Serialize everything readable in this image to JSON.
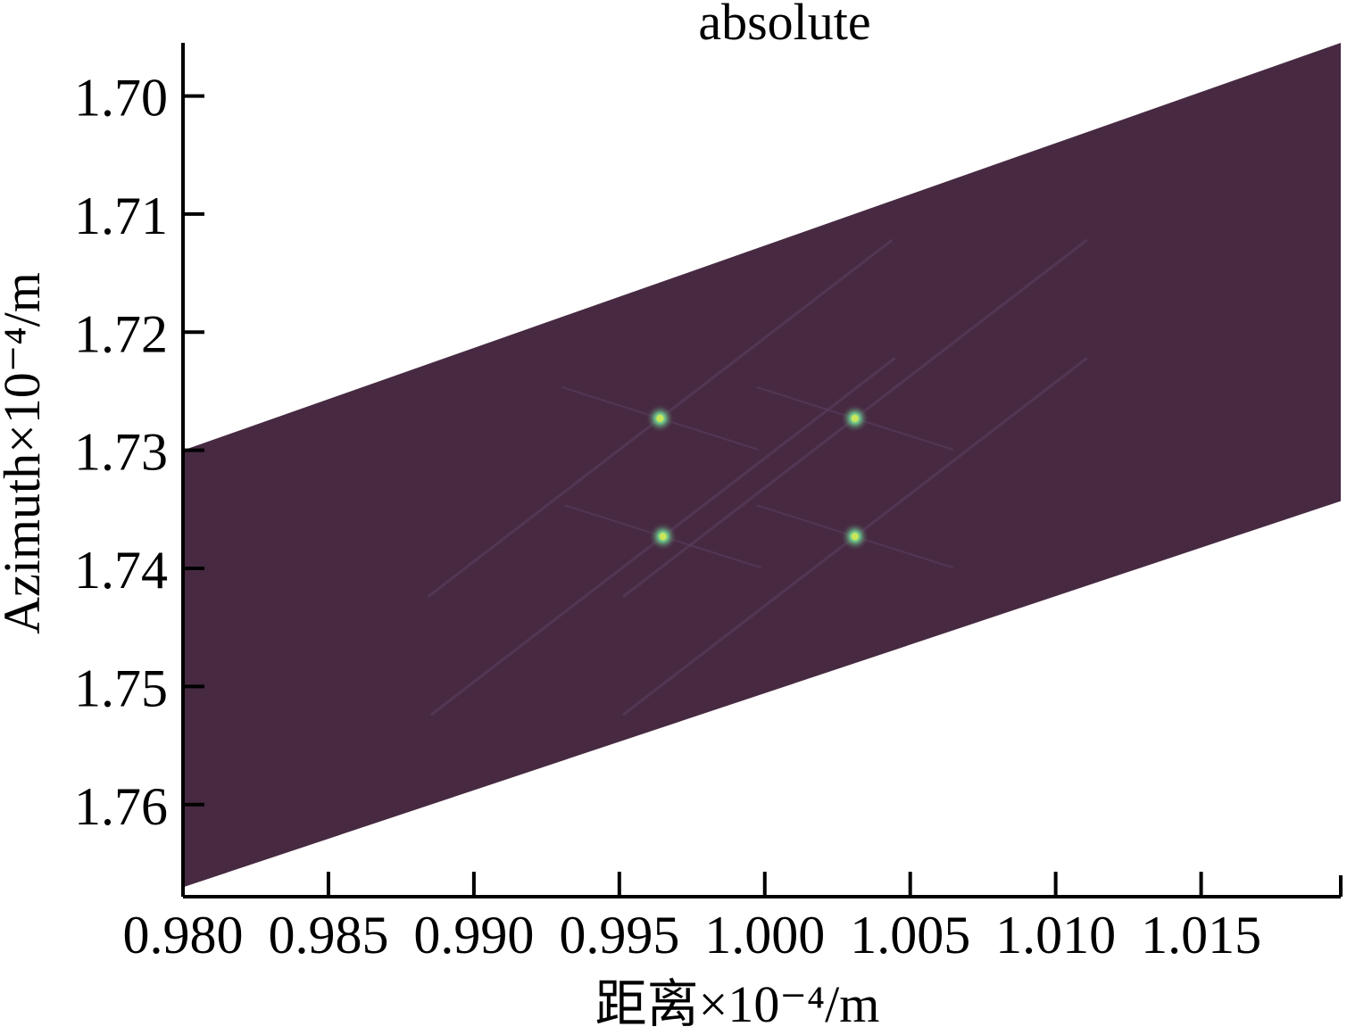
{
  "chart_data": {
    "type": "heatmap",
    "title": "absolute",
    "xlabel": "距离×10⁻⁴/m",
    "ylabel": "Azimuth×10⁻⁴/m",
    "xlim": [
      0.98,
      1.0198
    ],
    "ylim": [
      1.7678,
      1.6955
    ],
    "y_axis_inverted": true,
    "x_ticks": [
      "0.980",
      "0.985",
      "0.990",
      "0.995",
      "1.000",
      "1.005",
      "1.010",
      "1.015"
    ],
    "x_tick_values": [
      0.98,
      0.985,
      0.99,
      0.995,
      1.0,
      1.005,
      1.01,
      1.015
    ],
    "y_ticks": [
      "1.70",
      "1.71",
      "1.72",
      "1.73",
      "1.74",
      "1.75",
      "1.76"
    ],
    "y_tick_values": [
      1.7,
      1.71,
      1.72,
      1.73,
      1.74,
      1.75,
      1.76
    ],
    "colors": {
      "background": "#472a42",
      "point_core": "#c8e65a",
      "point_halo": "#4aa58e"
    },
    "data_region": {
      "edge_left_x": 0.98,
      "edge_right_x": 1.0198,
      "top_edge": [
        [
          0.98,
          1.73
        ],
        [
          1.0198,
          1.6955
        ]
      ],
      "bottom_edge": [
        [
          0.98,
          1.767
        ],
        [
          1.0198,
          1.7343
        ]
      ]
    },
    "points": [
      {
        "x": 0.9964,
        "y": 1.7273,
        "value": 1.0
      },
      {
        "x": 1.0031,
        "y": 1.7273,
        "value": 1.0
      },
      {
        "x": 0.9965,
        "y": 1.7373,
        "value": 1.0
      },
      {
        "x": 1.0031,
        "y": 1.7373,
        "value": 1.0
      }
    ]
  }
}
